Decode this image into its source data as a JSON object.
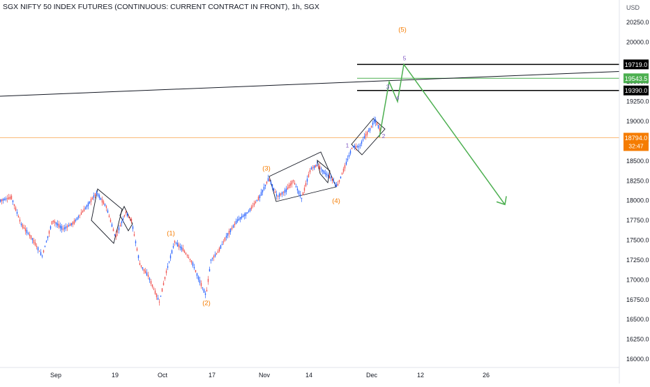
{
  "header": {
    "title": "SGX NIFTY 50 INDEX FUTURES (CONTINUOUS: CURRENT CONTRACT IN FRONT), 1h, SGX",
    "currency": "USD"
  },
  "chart_data": {
    "type": "candlestick",
    "symbol": "SGX NIFTY 50 INDEX FUTURES (CONTINUOUS: CURRENT CONTRACT IN FRONT)",
    "interval": "1h",
    "exchange": "SGX",
    "ylim": [
      15950,
      20400
    ],
    "y_ticks": [
      16000,
      16250,
      16500,
      16750,
      17000,
      17250,
      17500,
      17750,
      18000,
      18250,
      18500,
      18750,
      19000,
      19250,
      19500,
      19750,
      20000,
      20250
    ],
    "y_tick_labels": [
      "16000.0",
      "16250.0",
      "16500.0",
      "16750.0",
      "17000.0",
      "17250.0",
      "17500.0",
      "17750.0",
      "18000.0",
      "18250.0",
      "18500.0",
      "18750.0",
      "19000.0",
      "19250.0",
      "19500.0",
      "19750.0",
      "20000.0",
      "20250.0"
    ],
    "x_tick_labels": [
      "Sep",
      "19",
      "Oct",
      "17",
      "Nov",
      "14",
      "Dec",
      "12",
      "26"
    ],
    "price_path": [
      [
        0,
        18000
      ],
      [
        16,
        18040
      ],
      [
        30,
        17700
      ],
      [
        45,
        17530
      ],
      [
        60,
        17300
      ],
      [
        75,
        17750
      ],
      [
        90,
        17640
      ],
      [
        105,
        17720
      ],
      [
        120,
        17880
      ],
      [
        138,
        18100
      ],
      [
        152,
        17920
      ],
      [
        165,
        17540
      ],
      [
        180,
        17850
      ],
      [
        188,
        17750
      ],
      [
        200,
        17200
      ],
      [
        212,
        17050
      ],
      [
        228,
        16720
      ],
      [
        238,
        17100
      ],
      [
        250,
        17480
      ],
      [
        262,
        17380
      ],
      [
        275,
        17220
      ],
      [
        285,
        17000
      ],
      [
        295,
        16800
      ],
      [
        302,
        17250
      ],
      [
        312,
        17350
      ],
      [
        325,
        17560
      ],
      [
        340,
        17750
      ],
      [
        355,
        17850
      ],
      [
        372,
        18050
      ],
      [
        385,
        18280
      ],
      [
        397,
        18050
      ],
      [
        410,
        18130
      ],
      [
        420,
        18250
      ],
      [
        432,
        18030
      ],
      [
        445,
        18400
      ],
      [
        455,
        18450
      ],
      [
        465,
        18350
      ],
      [
        475,
        18280
      ],
      [
        483,
        18180
      ],
      [
        495,
        18450
      ],
      [
        505,
        18680
      ],
      [
        515,
        18680
      ],
      [
        522,
        18800
      ],
      [
        530,
        18900
      ],
      [
        537,
        19020
      ],
      [
        544,
        18900
      ]
    ],
    "horizontal_levels": [
      {
        "value": 19719.0,
        "label": "19719.0",
        "color": "#000000"
      },
      {
        "value": 19543.5,
        "label": "19543.5",
        "color": "#4caf50"
      },
      {
        "value": 19390.0,
        "label": "19390.0",
        "color": "#000000"
      }
    ],
    "last_price": {
      "value": 18794.0,
      "label": "18794.0",
      "countdown": "32:47",
      "color": "#f57c00"
    },
    "wave_labels": [
      {
        "text": "(1)",
        "price": 17560,
        "color": "#f57c00"
      },
      {
        "text": "(2)",
        "price": 16680,
        "color": "#f57c00"
      },
      {
        "text": "(3)",
        "price": 18380,
        "color": "#f57c00"
      },
      {
        "text": "(4)",
        "price": 17970,
        "color": "#f57c00"
      },
      {
        "text": "(5)",
        "price": 20130,
        "color": "#f57c00"
      },
      {
        "text": "1",
        "price": 18670,
        "color": "#7e57c2"
      },
      {
        "text": "2",
        "price": 18790,
        "color": "#7e57c2"
      },
      {
        "text": "3",
        "price": 19410,
        "color": "#7e57c2"
      },
      {
        "text": "4",
        "price": 19270,
        "color": "#7e57c2"
      },
      {
        "text": "5",
        "price": 19770,
        "color": "#7e57c2"
      }
    ],
    "projection_path": [
      18800,
      19500,
      19250,
      19719,
      17950
    ],
    "colors": {
      "up": "#2962ff",
      "down": "#ef5350",
      "projection": "#4caf50",
      "grid_text": "#131722"
    }
  }
}
